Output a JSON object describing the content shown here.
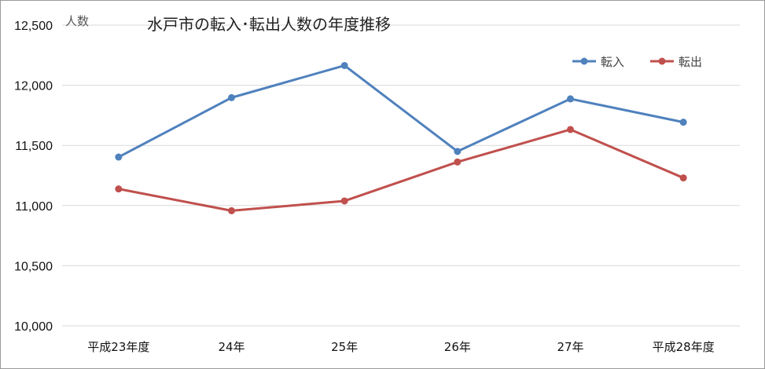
{
  "chart_data": {
    "type": "line",
    "title": "水戸市の転入･転出人数の年度推移",
    "ylabel": "人数",
    "xlabel": "",
    "categories": [
      "平成23年度",
      "24年",
      "25年",
      "26年",
      "27年",
      "平成28年度"
    ],
    "ylim": [
      10000,
      12500
    ],
    "yticks": [
      10000,
      10500,
      11000,
      11500,
      12000,
      12500
    ],
    "ytick_labels": [
      "10,000",
      "10,500",
      "11,000",
      "11,500",
      "12,000",
      "12,500"
    ],
    "grid": true,
    "legend_position": "top-right",
    "series": [
      {
        "name": "転入",
        "color": "#4f81bd",
        "values": [
          11403,
          11897,
          12164,
          11450,
          11887,
          11693
        ]
      },
      {
        "name": "転出",
        "color": "#c0504d",
        "values": [
          11138,
          10957,
          11038,
          11362,
          11632,
          11230
        ]
      }
    ]
  }
}
